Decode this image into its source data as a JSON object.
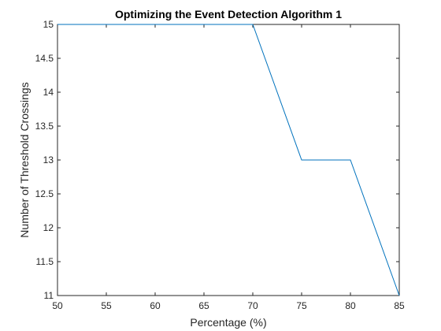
{
  "chart_data": {
    "type": "line",
    "title": "Optimizing the Event Detection Algorithm 1",
    "xlabel": "Percentage (%)",
    "ylabel": "Number of Threshold Crossings",
    "xlim": [
      50,
      85
    ],
    "ylim": [
      11,
      15
    ],
    "xticks": [
      50,
      55,
      60,
      65,
      70,
      75,
      80,
      85
    ],
    "xtick_labels": [
      "50",
      "55",
      "60",
      "65",
      "70",
      "75",
      "80",
      "85"
    ],
    "yticks": [
      11,
      11.5,
      12,
      12.5,
      13,
      13.5,
      14,
      14.5,
      15
    ],
    "ytick_labels": [
      "11",
      "11.5",
      "12",
      "12.5",
      "13",
      "13.5",
      "14",
      "14.5",
      "15"
    ],
    "grid": false,
    "legend": "none",
    "series": [
      {
        "color": "#0072bd",
        "x": [
          50,
          55,
          60,
          65,
          70,
          75,
          80,
          85
        ],
        "y": [
          15,
          15,
          15,
          15,
          15,
          13,
          13,
          11
        ]
      }
    ]
  }
}
